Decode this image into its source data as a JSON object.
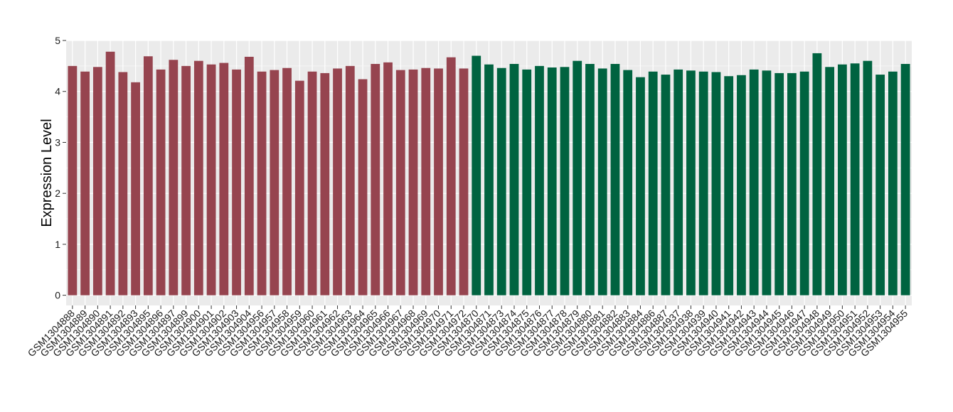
{
  "chart_data": {
    "type": "bar",
    "title": "",
    "xlabel": "",
    "ylabel": "Expression Level",
    "ylim": [
      -0.2,
      5
    ],
    "yticks": [
      0,
      1,
      2,
      3,
      4,
      5
    ],
    "grid": true,
    "legend": "none",
    "colors": {
      "group_a": "#96444F",
      "group_b": "#006340",
      "panel_bg": "#EBEBEB",
      "grid": "#FFFFFF"
    },
    "categories": [
      "GSM1304888",
      "GSM1304889",
      "GSM1304890",
      "GSM1304891",
      "GSM1304892",
      "GSM1304893",
      "GSM1304895",
      "GSM1304896",
      "GSM1304897",
      "GSM1304899",
      "GSM1304900",
      "GSM1304901",
      "GSM1304902",
      "GSM1304903",
      "GSM1304904",
      "GSM1304956",
      "GSM1304957",
      "GSM1304958",
      "GSM1304959",
      "GSM1304960",
      "GSM1304961",
      "GSM1304962",
      "GSM1304963",
      "GSM1304964",
      "GSM1304965",
      "GSM1304966",
      "GSM1304967",
      "GSM1304968",
      "GSM1304969",
      "GSM1304970",
      "GSM1304971",
      "GSM1304972",
      "GSM1304870",
      "GSM1304871",
      "GSM1304873",
      "GSM1304874",
      "GSM1304875",
      "GSM1304876",
      "GSM1304877",
      "GSM1304878",
      "GSM1304879",
      "GSM1304880",
      "GSM1304881",
      "GSM1304882",
      "GSM1304883",
      "GSM1304884",
      "GSM1304886",
      "GSM1304887",
      "GSM1304937",
      "GSM1304938",
      "GSM1304939",
      "GSM1304940",
      "GSM1304941",
      "GSM1304942",
      "GSM1304943",
      "GSM1304944",
      "GSM1304945",
      "GSM1304946",
      "GSM1304947",
      "GSM1304948",
      "GSM1304949",
      "GSM1304950",
      "GSM1304951",
      "GSM1304952",
      "GSM1304953",
      "GSM1304954",
      "GSM1304955"
    ],
    "values": [
      4.5,
      4.39,
      4.48,
      4.78,
      4.38,
      4.18,
      4.69,
      4.43,
      4.62,
      4.5,
      4.6,
      4.53,
      4.56,
      4.43,
      4.68,
      4.39,
      4.42,
      4.46,
      4.21,
      4.39,
      4.36,
      4.45,
      4.5,
      4.24,
      4.54,
      4.57,
      4.42,
      4.43,
      4.46,
      4.45,
      4.67,
      4.45,
      4.7,
      4.53,
      4.46,
      4.54,
      4.43,
      4.5,
      4.47,
      4.48,
      4.6,
      4.54,
      4.45,
      4.54,
      4.42,
      4.28,
      4.39,
      4.33,
      4.43,
      4.41,
      4.39,
      4.38,
      4.3,
      4.32,
      4.43,
      4.41,
      4.36,
      4.36,
      4.39,
      4.75,
      4.48,
      4.53,
      4.55,
      4.6,
      4.33,
      4.39,
      4.54
    ],
    "groups": [
      "a",
      "a",
      "a",
      "a",
      "a",
      "a",
      "a",
      "a",
      "a",
      "a",
      "a",
      "a",
      "a",
      "a",
      "a",
      "a",
      "a",
      "a",
      "a",
      "a",
      "a",
      "a",
      "a",
      "a",
      "a",
      "a",
      "a",
      "a",
      "a",
      "a",
      "a",
      "a",
      "b",
      "b",
      "b",
      "b",
      "b",
      "b",
      "b",
      "b",
      "b",
      "b",
      "b",
      "b",
      "b",
      "b",
      "b",
      "b",
      "b",
      "b",
      "b",
      "b",
      "b",
      "b",
      "b",
      "b",
      "b",
      "b",
      "b",
      "b",
      "b",
      "b",
      "b",
      "b",
      "b",
      "b",
      "b"
    ]
  }
}
